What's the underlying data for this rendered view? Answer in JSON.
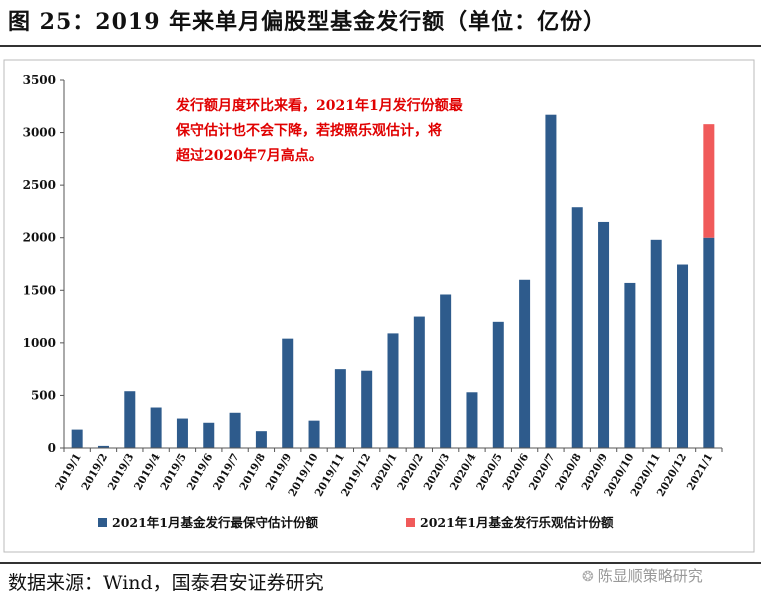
{
  "title": "图 25：2019 年来单月偏股型基金发行额（单位：亿份）",
  "source": "数据来源：Wind，国泰君安证券研究",
  "watermark": "陈显顺策略研究",
  "colors": {
    "conservative": "#2e5b8c",
    "optimistic": "#f05a5a",
    "annotation": "#e00000"
  },
  "chart_data": {
    "type": "bar",
    "stacked": true,
    "categories": [
      "2019/1",
      "2019/2",
      "2019/3",
      "2019/4",
      "2019/5",
      "2019/6",
      "2019/7",
      "2019/8",
      "2019/9",
      "2019/10",
      "2019/11",
      "2019/12",
      "2020/1",
      "2020/2",
      "2020/3",
      "2020/4",
      "2020/5",
      "2020/6",
      "2020/7",
      "2020/8",
      "2020/9",
      "2020/10",
      "2020/11",
      "2020/12",
      "2021/1"
    ],
    "series": [
      {
        "name": "2021年1月基金发行最保守估计份额",
        "color": "#2e5b8c",
        "values": [
          175,
          20,
          540,
          385,
          280,
          240,
          335,
          160,
          1040,
          260,
          750,
          735,
          1090,
          1250,
          1460,
          530,
          1200,
          1600,
          3170,
          2290,
          2150,
          1570,
          1980,
          1745,
          2000
        ]
      },
      {
        "name": "2021年1月基金发行乐观估计份额",
        "color": "#f05a5a",
        "values": [
          0,
          0,
          0,
          0,
          0,
          0,
          0,
          0,
          0,
          0,
          0,
          0,
          0,
          0,
          0,
          0,
          0,
          0,
          0,
          0,
          0,
          0,
          0,
          0,
          1080
        ]
      }
    ],
    "ylim": [
      0,
      3500
    ],
    "yticks": [
      0,
      500,
      1000,
      1500,
      2000,
      2500,
      3000,
      3500
    ],
    "legend_position": "bottom",
    "annotation": {
      "lines": [
        "发行额月度环比来看，2021年1月发行份额最",
        "保守估计也不会下降，若按照乐观估计，将",
        "超过2020年7月高点。"
      ]
    }
  }
}
